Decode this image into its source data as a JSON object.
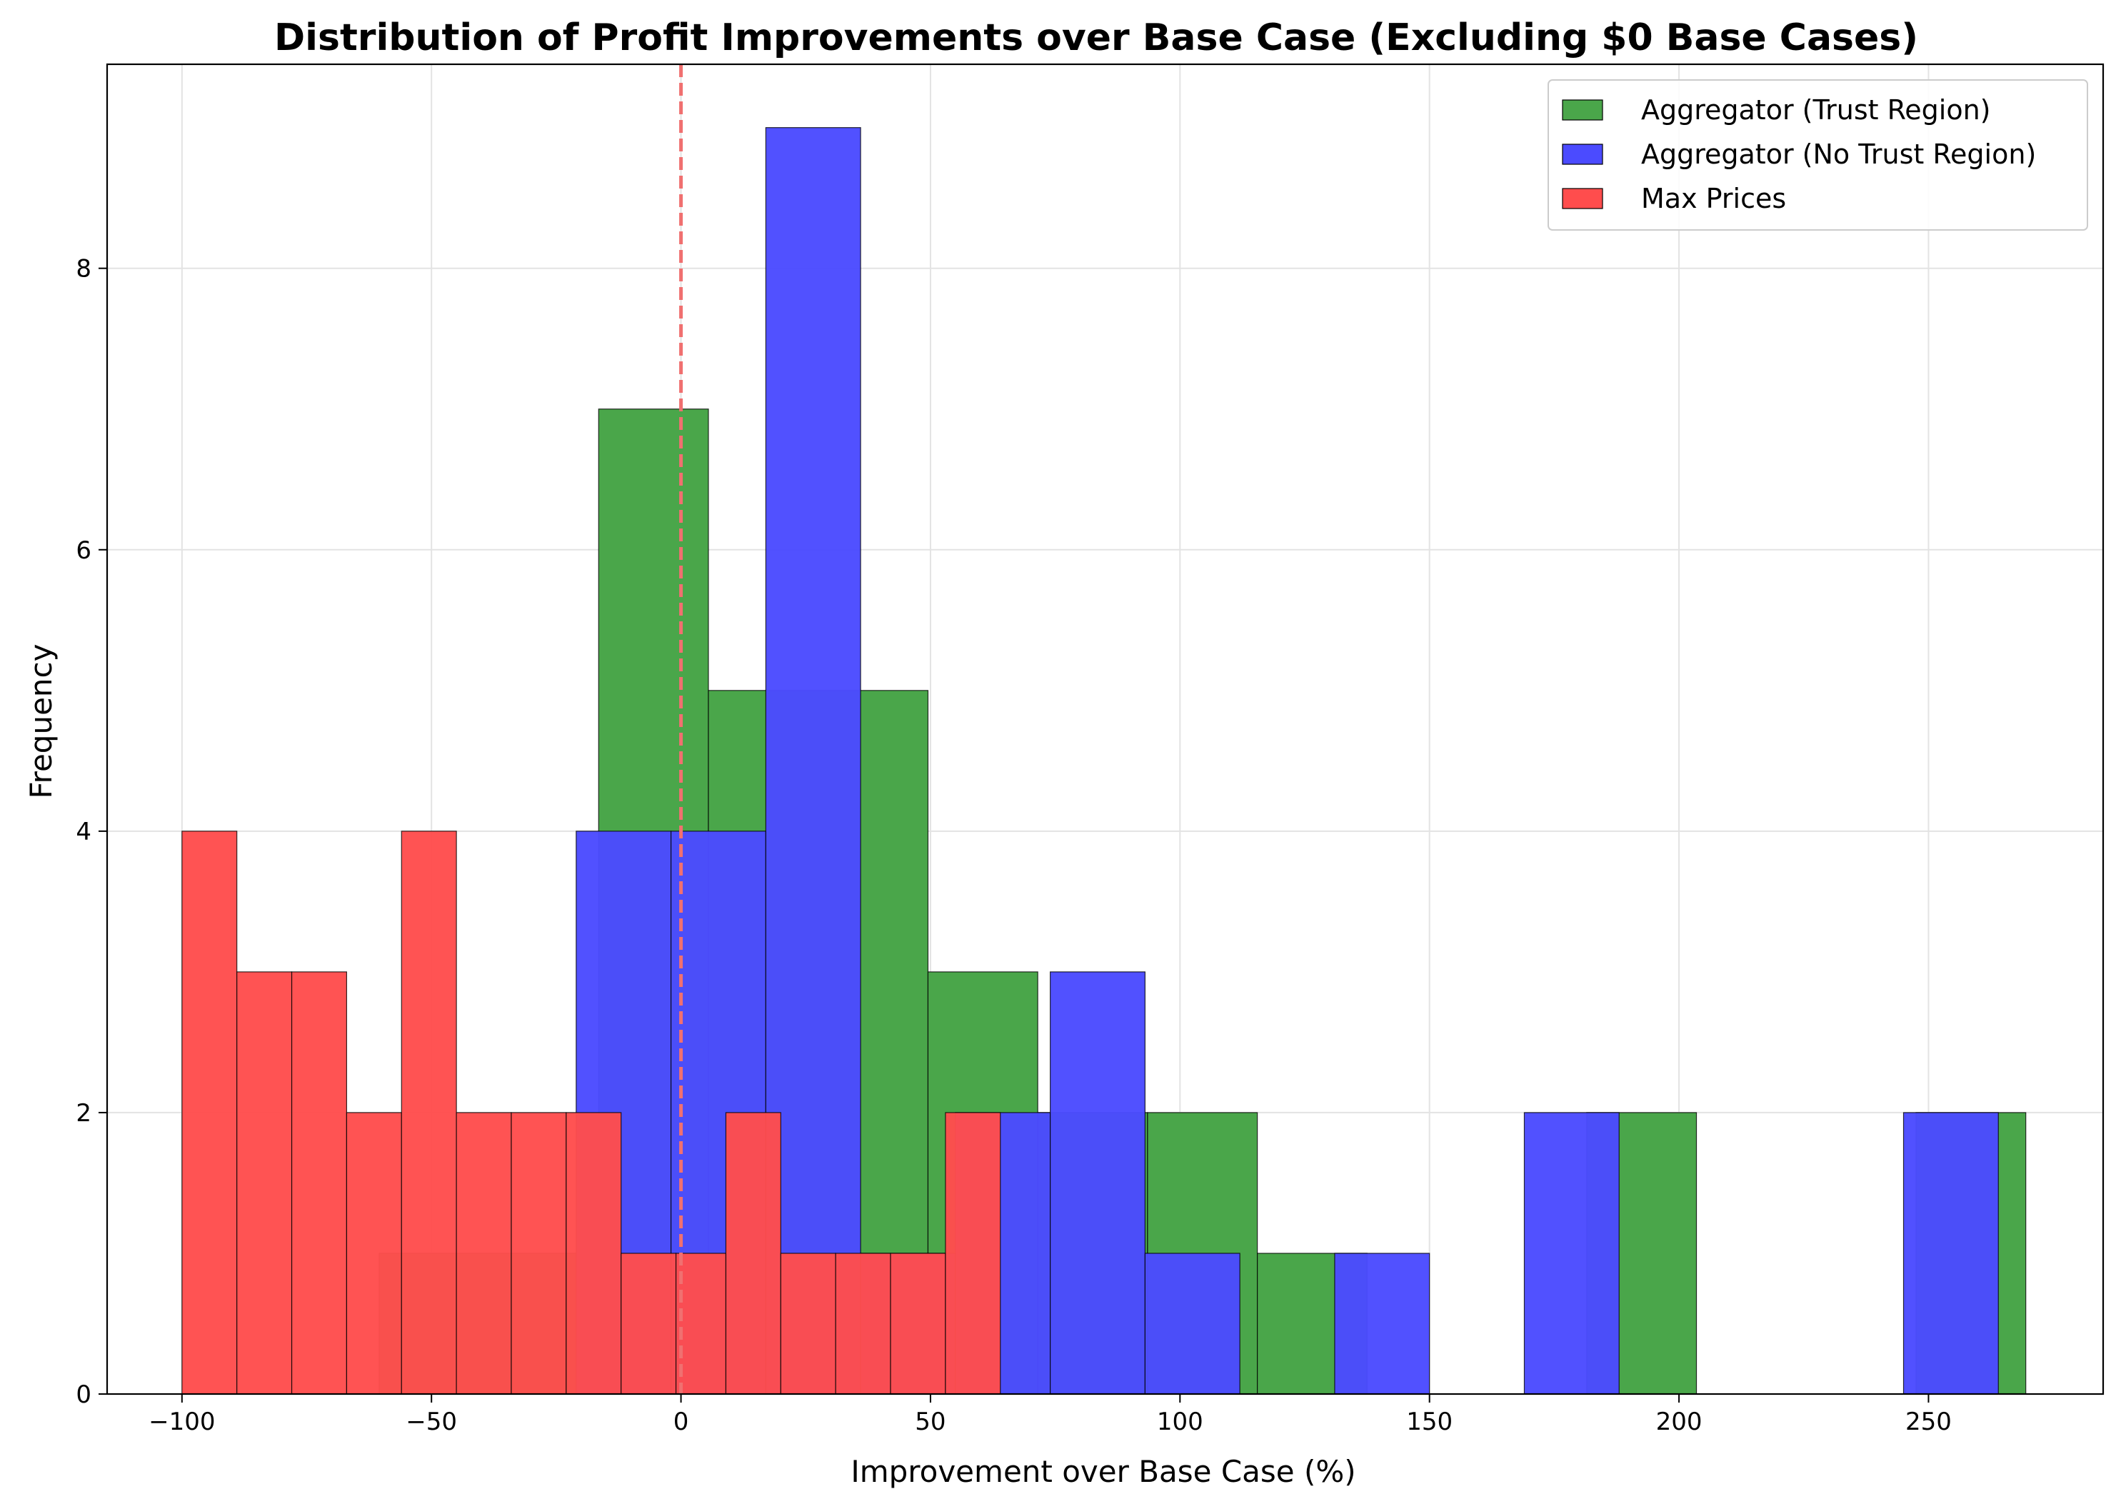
{
  "chart_data": {
    "type": "histogram",
    "title": "Distribution of Profit Improvements over Base Case (Excluding $0 Base Cases)",
    "xlabel": "Improvement over Base Case (%)",
    "ylabel": "Frequency",
    "xlim": [
      -115,
      285
    ],
    "ylim": [
      0,
      9.45
    ],
    "xticks": [
      -100,
      -50,
      0,
      50,
      100,
      150,
      200,
      250
    ],
    "xtick_labels": [
      "−100",
      "−50",
      "0",
      "50",
      "100",
      "150",
      "200",
      "250"
    ],
    "yticks": [
      0,
      2,
      4,
      6,
      8
    ],
    "ytick_labels": [
      "0",
      "2",
      "4",
      "6",
      "8"
    ],
    "grid": true,
    "legend_position": "top-right",
    "reference_line": {
      "x": 0,
      "style": "dashed",
      "color": "#f07070"
    },
    "series": [
      {
        "name": "Aggregator (Trust Region)",
        "color": "#4aa64a",
        "bins": [
          [
            -60.5,
            -16.5,
            1
          ],
          [
            -16.5,
            5.5,
            7
          ],
          [
            5.5,
            49.5,
            5
          ],
          [
            49.5,
            71.5,
            3
          ],
          [
            71.5,
            93.5,
            2
          ],
          [
            93.5,
            115.5,
            2
          ],
          [
            115.5,
            137.5,
            1
          ],
          [
            181.5,
            203.5,
            2
          ],
          [
            247.5,
            269.5,
            2
          ]
        ]
      },
      {
        "name": "Aggregator (No Trust Region)",
        "color": "#4b4bff",
        "bins": [
          [
            -21,
            -2,
            4
          ],
          [
            -2,
            17,
            4
          ],
          [
            17,
            36,
            9
          ],
          [
            36,
            55,
            1
          ],
          [
            55,
            74,
            2
          ],
          [
            74,
            93,
            3
          ],
          [
            93,
            112,
            1
          ],
          [
            131,
            150,
            1
          ],
          [
            169,
            188,
            2
          ],
          [
            245,
            264,
            2
          ]
        ]
      },
      {
        "name": "Max Prices",
        "color": "#ff4d4d",
        "bins": [
          [
            -100,
            -89,
            4
          ],
          [
            -89,
            -78,
            3
          ],
          [
            -78,
            -67,
            3
          ],
          [
            -67,
            -56,
            2
          ],
          [
            -56,
            -45,
            4
          ],
          [
            -45,
            -34,
            2
          ],
          [
            -34,
            -23,
            2
          ],
          [
            -23,
            -12,
            2
          ],
          [
            -12,
            -1,
            1
          ],
          [
            -1,
            9,
            1
          ],
          [
            9,
            20,
            2
          ],
          [
            20,
            31,
            1
          ],
          [
            31,
            42,
            1
          ],
          [
            42,
            53,
            1
          ],
          [
            53,
            64,
            2
          ]
        ]
      }
    ]
  }
}
